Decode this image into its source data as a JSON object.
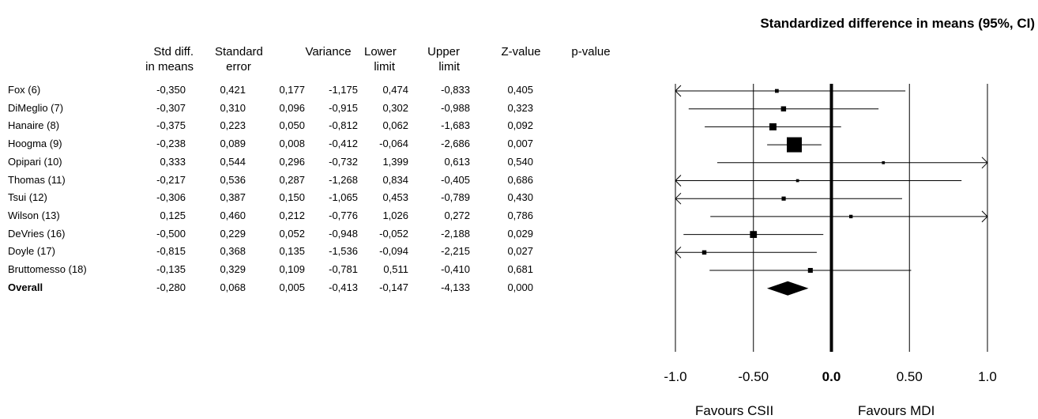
{
  "chart_data": {
    "type": "forest",
    "title": "Standardized difference in means (95%, CI)",
    "columns": [
      {
        "key": "std_diff",
        "label": [
          "Std diff.",
          "in means"
        ]
      },
      {
        "key": "se",
        "label": [
          "Standard",
          "error"
        ]
      },
      {
        "key": "variance",
        "label": [
          "Variance",
          ""
        ]
      },
      {
        "key": "lower",
        "label": [
          "Lower",
          "limit"
        ]
      },
      {
        "key": "upper",
        "label": [
          "Upper",
          "limit"
        ]
      },
      {
        "key": "z",
        "label": [
          "Z-value",
          ""
        ]
      },
      {
        "key": "p",
        "label": [
          "p-value",
          ""
        ]
      }
    ],
    "studies": [
      {
        "name": "Fox (6)",
        "std_diff": "-0,350",
        "se": "0,421",
        "variance": "0,177",
        "lower": "-1,175",
        "upper": "0,474",
        "z": "-0,833",
        "p": "0,405",
        "est": -0.35,
        "lo": -1.175,
        "hi": 0.474
      },
      {
        "name": "DiMeglio (7)",
        "std_diff": "-0,307",
        "se": "0,310",
        "variance": "0,096",
        "lower": "-0,915",
        "upper": "0,302",
        "z": "-0,988",
        "p": "0,323",
        "est": -0.307,
        "lo": -0.915,
        "hi": 0.302
      },
      {
        "name": "Hanaire (8)",
        "std_diff": "-0,375",
        "se": "0,223",
        "variance": "0,050",
        "lower": "-0,812",
        "upper": "0,062",
        "z": "-1,683",
        "p": "0,092",
        "est": -0.375,
        "lo": -0.812,
        "hi": 0.062
      },
      {
        "name": "Hoogma (9)",
        "std_diff": "-0,238",
        "se": "0,089",
        "variance": "0,008",
        "lower": "-0,412",
        "upper": "-0,064",
        "z": "-2,686",
        "p": "0,007",
        "est": -0.238,
        "lo": -0.412,
        "hi": -0.064
      },
      {
        "name": "Opipari (10)",
        "std_diff": "0,333",
        "se": "0,544",
        "variance": "0,296",
        "lower": "-0,732",
        "upper": "1,399",
        "z": "0,613",
        "p": "0,540",
        "est": 0.333,
        "lo": -0.732,
        "hi": 1.399
      },
      {
        "name": "Thomas (11)",
        "std_diff": "-0,217",
        "se": "0,536",
        "variance": "0,287",
        "lower": "-1,268",
        "upper": "0,834",
        "z": "-0,405",
        "p": "0,686",
        "est": -0.217,
        "lo": -1.268,
        "hi": 0.834
      },
      {
        "name": "Tsui (12)",
        "std_diff": "-0,306",
        "se": "0,387",
        "variance": "0,150",
        "lower": "-1,065",
        "upper": "0,453",
        "z": "-0,789",
        "p": "0,430",
        "est": -0.306,
        "lo": -1.065,
        "hi": 0.453
      },
      {
        "name": "Wilson (13)",
        "std_diff": "0,125",
        "se": "0,460",
        "variance": "0,212",
        "lower": "-0,776",
        "upper": "1,026",
        "z": "0,272",
        "p": "0,786",
        "est": 0.125,
        "lo": -0.776,
        "hi": 1.026
      },
      {
        "name": "DeVries (16)",
        "std_diff": "-0,500",
        "se": "0,229",
        "variance": "0,052",
        "lower": "-0,948",
        "upper": "-0,052",
        "z": "-2,188",
        "p": "0,029",
        "est": -0.5,
        "lo": -0.948,
        "hi": -0.052
      },
      {
        "name": "Doyle (17)",
        "std_diff": "-0,815",
        "se": "0,368",
        "variance": "0,135",
        "lower": "-1,536",
        "upper": "-0,094",
        "z": "-2,215",
        "p": "0,027",
        "est": -0.815,
        "lo": -1.536,
        "hi": -0.094
      },
      {
        "name": "Bruttomesso (18)",
        "std_diff": "-0,135",
        "se": "0,329",
        "variance": "0,109",
        "lower": "-0,781",
        "upper": "0,511",
        "z": "-0,410",
        "p": "0,681",
        "est": -0.135,
        "lo": -0.781,
        "hi": 0.511
      }
    ],
    "overall": {
      "name": "Overall",
      "std_diff": "-0,280",
      "se": "0,068",
      "variance": "0,005",
      "lower": "-0,413",
      "upper": "-0,147",
      "z": "-4,133",
      "p": "0,000",
      "est": -0.28,
      "lo": -0.413,
      "hi": -0.147
    },
    "xlim": [
      -1.0,
      1.0
    ],
    "xticks": [
      {
        "value": -1.0,
        "label": "-1.0",
        "bold": false
      },
      {
        "value": -0.5,
        "label": "-0.50",
        "bold": false
      },
      {
        "value": 0.0,
        "label": "0.0",
        "bold": true
      },
      {
        "value": 0.5,
        "label": "0.50",
        "bold": false
      },
      {
        "value": 1.0,
        "label": "1.0",
        "bold": false
      }
    ],
    "favours_left": "Favours CSII",
    "favours_right": "Favours MDI"
  }
}
